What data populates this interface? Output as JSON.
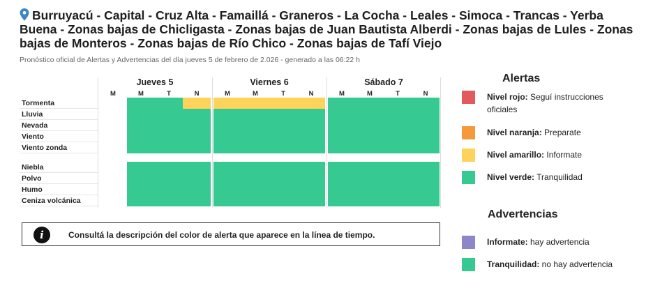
{
  "title": "Burruyacú - Capital - Cruz Alta - Famaillá - Graneros - La Cocha - Leales - Simoca - Trancas - Yerba Buena - Zonas bajas de Chicligasta - Zonas bajas de Juan Bautista Alberdi - Zonas bajas de Lules - Zonas bajas de Monteros - Zonas bajas de Río Chico - Zonas bajas de Tafí Viejo",
  "subtitle": "Pronóstico oficial de Alertas y Advertencias del día jueves 5 de febrero de 2.026 - generado a las 06:22 h",
  "colors": {
    "rojo": "#e05a5e",
    "naranja": "#f59a3b",
    "amarillo": "#fdd35b",
    "verde": "#36c991",
    "violeta": "#8d86c9"
  },
  "timeline": {
    "days": [
      {
        "label": "Jueves 5",
        "slots": [
          "M",
          "M",
          "T",
          "N"
        ]
      },
      {
        "label": "Viernes 6",
        "slots": [
          "M",
          "M",
          "T",
          "N"
        ]
      },
      {
        "label": "Sábado 7",
        "slots": [
          "M",
          "M",
          "T",
          "N"
        ]
      }
    ],
    "alert_rows": [
      {
        "label": "Tormenta",
        "levels": [
          "none",
          "verde",
          "verde",
          "amarillo",
          "amarillo",
          "amarillo",
          "amarillo",
          "amarillo",
          "verde",
          "verde",
          "verde",
          "verde"
        ]
      },
      {
        "label": "Lluvia",
        "levels": [
          "none",
          "verde",
          "verde",
          "verde",
          "verde",
          "verde",
          "verde",
          "verde",
          "verde",
          "verde",
          "verde",
          "verde"
        ]
      },
      {
        "label": "Nevada",
        "levels": [
          "none",
          "verde",
          "verde",
          "verde",
          "verde",
          "verde",
          "verde",
          "verde",
          "verde",
          "verde",
          "verde",
          "verde"
        ]
      },
      {
        "label": "Viento",
        "levels": [
          "none",
          "verde",
          "verde",
          "verde",
          "verde",
          "verde",
          "verde",
          "verde",
          "verde",
          "verde",
          "verde",
          "verde"
        ]
      },
      {
        "label": "Viento zonda",
        "levels": [
          "none",
          "verde",
          "verde",
          "verde",
          "verde",
          "verde",
          "verde",
          "verde",
          "verde",
          "verde",
          "verde",
          "verde"
        ]
      }
    ],
    "advisory_rows": [
      {
        "label": "Niebla",
        "levels": [
          "none",
          "verde",
          "verde",
          "verde",
          "verde",
          "verde",
          "verde",
          "verde",
          "verde",
          "verde",
          "verde",
          "verde"
        ]
      },
      {
        "label": "Polvo",
        "levels": [
          "none",
          "verde",
          "verde",
          "verde",
          "verde",
          "verde",
          "verde",
          "verde",
          "verde",
          "verde",
          "verde",
          "verde"
        ]
      },
      {
        "label": "Humo",
        "levels": [
          "none",
          "verde",
          "verde",
          "verde",
          "verde",
          "verde",
          "verde",
          "verde",
          "verde",
          "verde",
          "verde",
          "verde"
        ]
      },
      {
        "label": "Ceniza volcánica",
        "levels": [
          "none",
          "verde",
          "verde",
          "verde",
          "verde",
          "verde",
          "verde",
          "verde",
          "verde",
          "verde",
          "verde",
          "verde"
        ]
      }
    ]
  },
  "info_text": "Consultá la descripción del color de alerta que aparece en la línea de tiempo.",
  "legend": {
    "alerts_title": "Alertas",
    "alerts": [
      {
        "color": "rojo",
        "name": "Nivel rojo:",
        "desc": "Seguí instrucciones oficiales"
      },
      {
        "color": "naranja",
        "name": "Nivel naranja:",
        "desc": "Preparate"
      },
      {
        "color": "amarillo",
        "name": "Nivel amarillo:",
        "desc": "Informate"
      },
      {
        "color": "verde",
        "name": "Nivel verde:",
        "desc": "Tranquilidad"
      }
    ],
    "advisories_title": "Advertencias",
    "advisories": [
      {
        "color": "violeta",
        "name": "Informate:",
        "desc": "hay advertencia"
      },
      {
        "color": "verde",
        "name": "Tranquilidad:",
        "desc": "no hay advertencia"
      }
    ]
  }
}
